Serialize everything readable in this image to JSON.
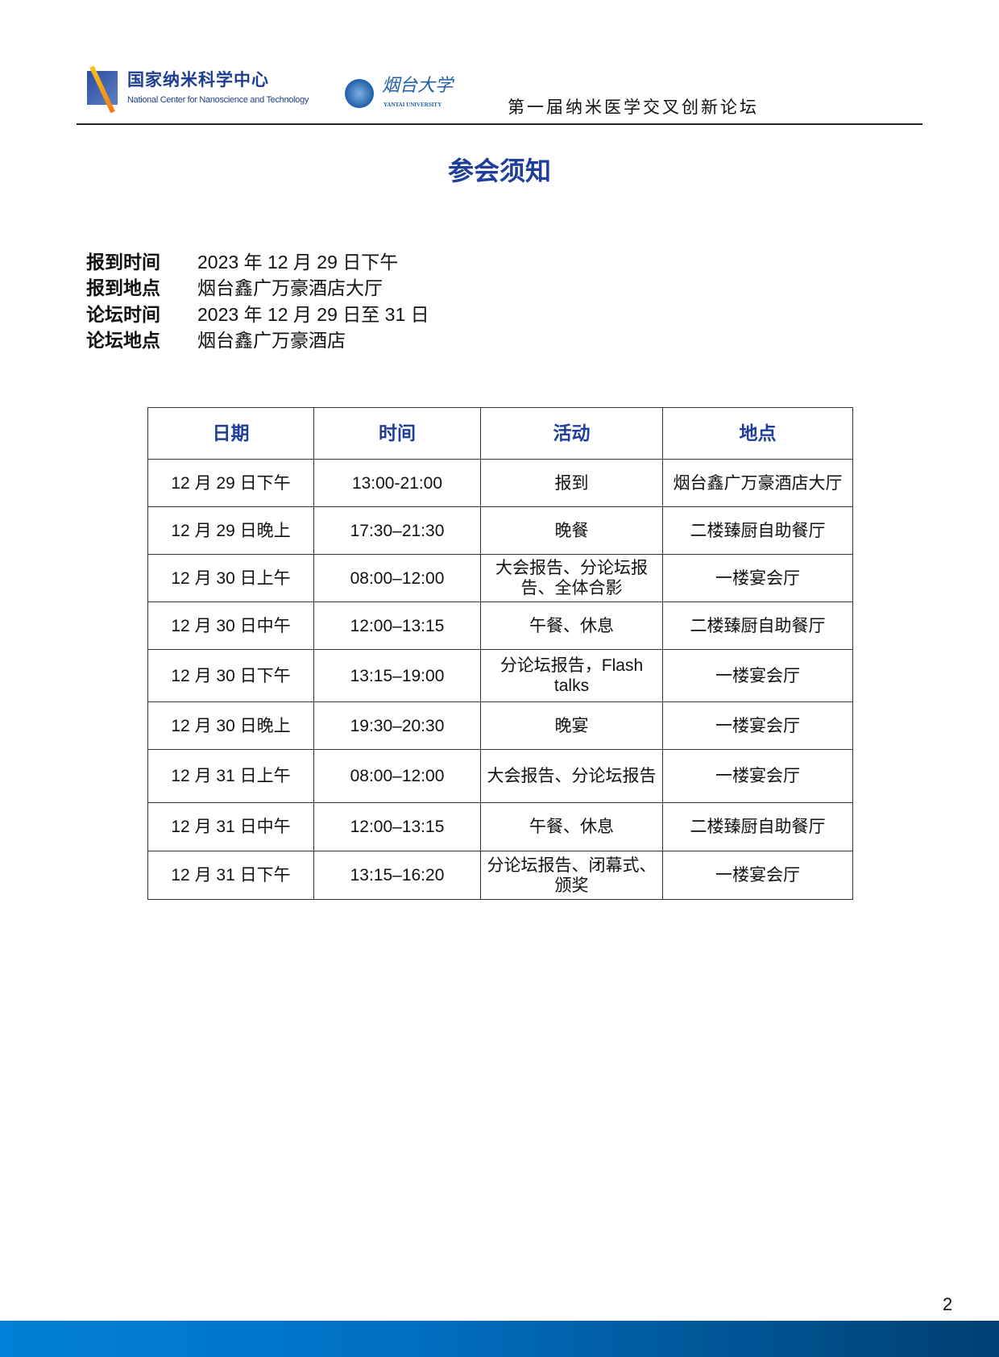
{
  "header": {
    "logo_ncnst_cn": "国家纳米科学中心",
    "logo_ncnst_en": "National Center for Nanoscience and Technology",
    "logo_ytu_cn": "烟台大学",
    "logo_ytu_en": "YANTAI UNIVERSITY",
    "forum_title": "第一届纳米医学交叉创新论坛"
  },
  "page_title": "参会须知",
  "info": [
    {
      "label": "报到时间",
      "value": "2023 年 12 月 29 日下午"
    },
    {
      "label": "报到地点",
      "value": "烟台鑫广万豪酒店大厅"
    },
    {
      "label": "论坛时间",
      "value": "2023 年 12 月 29 日至 31 日"
    },
    {
      "label": "论坛地点",
      "value": "烟台鑫广万豪酒店"
    }
  ],
  "table": {
    "headers": [
      "日期",
      "时间",
      "活动",
      "地点"
    ],
    "rows": [
      [
        "12 月 29 日下午",
        "13:00-21:00",
        "报到",
        "烟台鑫广万豪酒店大厅"
      ],
      [
        "12 月 29 日晚上",
        "17:30–21:30",
        "晚餐",
        "二楼臻厨自助餐厅"
      ],
      [
        "12 月 30 日上午",
        "08:00–12:00",
        "大会报告、分论坛报告、全体合影",
        "一楼宴会厅"
      ],
      [
        "12 月 30 日中午",
        "12:00–13:15",
        "午餐、休息",
        "二楼臻厨自助餐厅"
      ],
      [
        "12 月 30 日下午",
        "13:15–19:00",
        "分论坛报告，Flash talks",
        "一楼宴会厅"
      ],
      [
        "12 月 30 日晚上",
        "19:30–20:30",
        "晚宴",
        "一楼宴会厅"
      ],
      [
        "12 月 31 日上午",
        "08:00–12:00",
        "大会报告、分论坛报告",
        "一楼宴会厅"
      ],
      [
        "12 月 31 日中午",
        "12:00–13:15",
        "午餐、休息",
        "二楼臻厨自助餐厅"
      ],
      [
        "12 月 31 日下午",
        "13:15–16:20",
        "分论坛报告、闭幕式、颁奖",
        "一楼宴会厅"
      ]
    ]
  },
  "page_number": "2",
  "colors": {
    "title_blue": "#1f3e9a",
    "footer_start": "#0080d6",
    "footer_end": "#003f72"
  }
}
